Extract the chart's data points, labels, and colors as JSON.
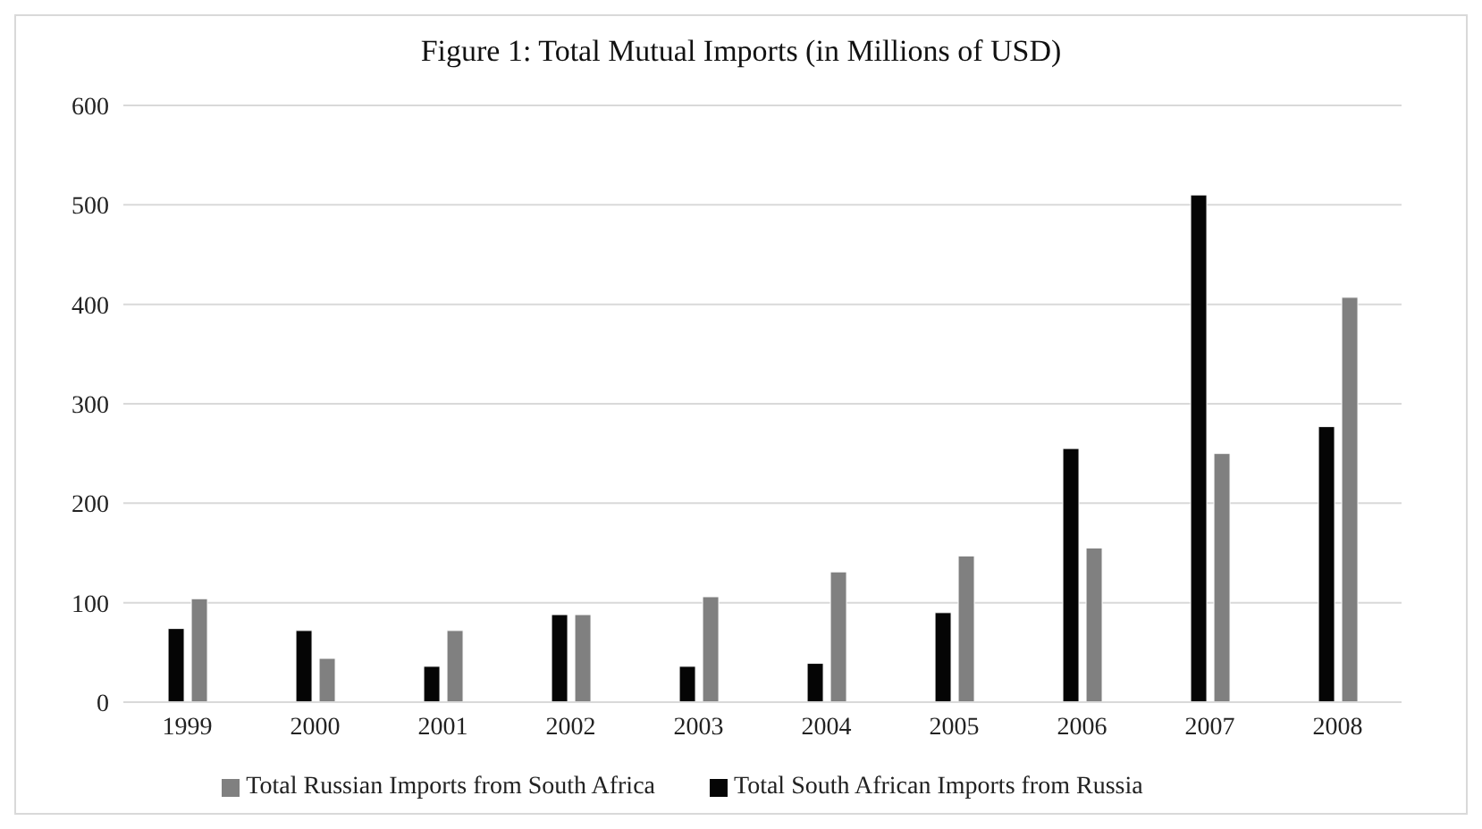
{
  "chart_data": {
    "type": "bar",
    "title": "Figure 1: Total Mutual Imports (in Millions of USD)",
    "categories": [
      "1999",
      "2000",
      "2001",
      "2002",
      "2003",
      "2004",
      "2005",
      "2006",
      "2007",
      "2008"
    ],
    "series": [
      {
        "name": "Total South African Imports from Russia",
        "color": "#050505",
        "values": [
          74,
          72,
          36,
          88,
          36,
          39,
          90,
          255,
          510,
          277
        ]
      },
      {
        "name": "Total Russian Imports from South Africa",
        "color": "#808080",
        "values": [
          104,
          44,
          72,
          88,
          106,
          131,
          147,
          155,
          250,
          407
        ]
      }
    ],
    "ylim": [
      0,
      600
    ],
    "yticks": [
      0,
      100,
      200,
      300,
      400,
      500,
      600
    ],
    "grid": "y",
    "legend": "bottom"
  }
}
